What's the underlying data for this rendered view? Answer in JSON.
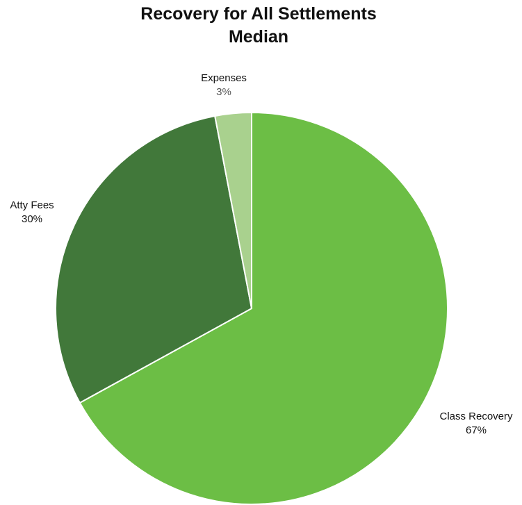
{
  "chart_data": {
    "type": "pie",
    "title": "Recovery for All Settlements",
    "subtitle": "Median",
    "slices": [
      {
        "label": "Class Recovery",
        "value": 67,
        "value_label": "67%",
        "color": "#6cbe45"
      },
      {
        "label": "Atty Fees",
        "value": 30,
        "value_label": "30%",
        "color": "#41783a"
      },
      {
        "label": "Expenses",
        "value": 3,
        "value_label": "3%",
        "color": "#a9d18e"
      }
    ],
    "start": "12 o'clock",
    "direction": "clockwise",
    "legend": "none",
    "data_labels": "outside, category name and percentage"
  }
}
